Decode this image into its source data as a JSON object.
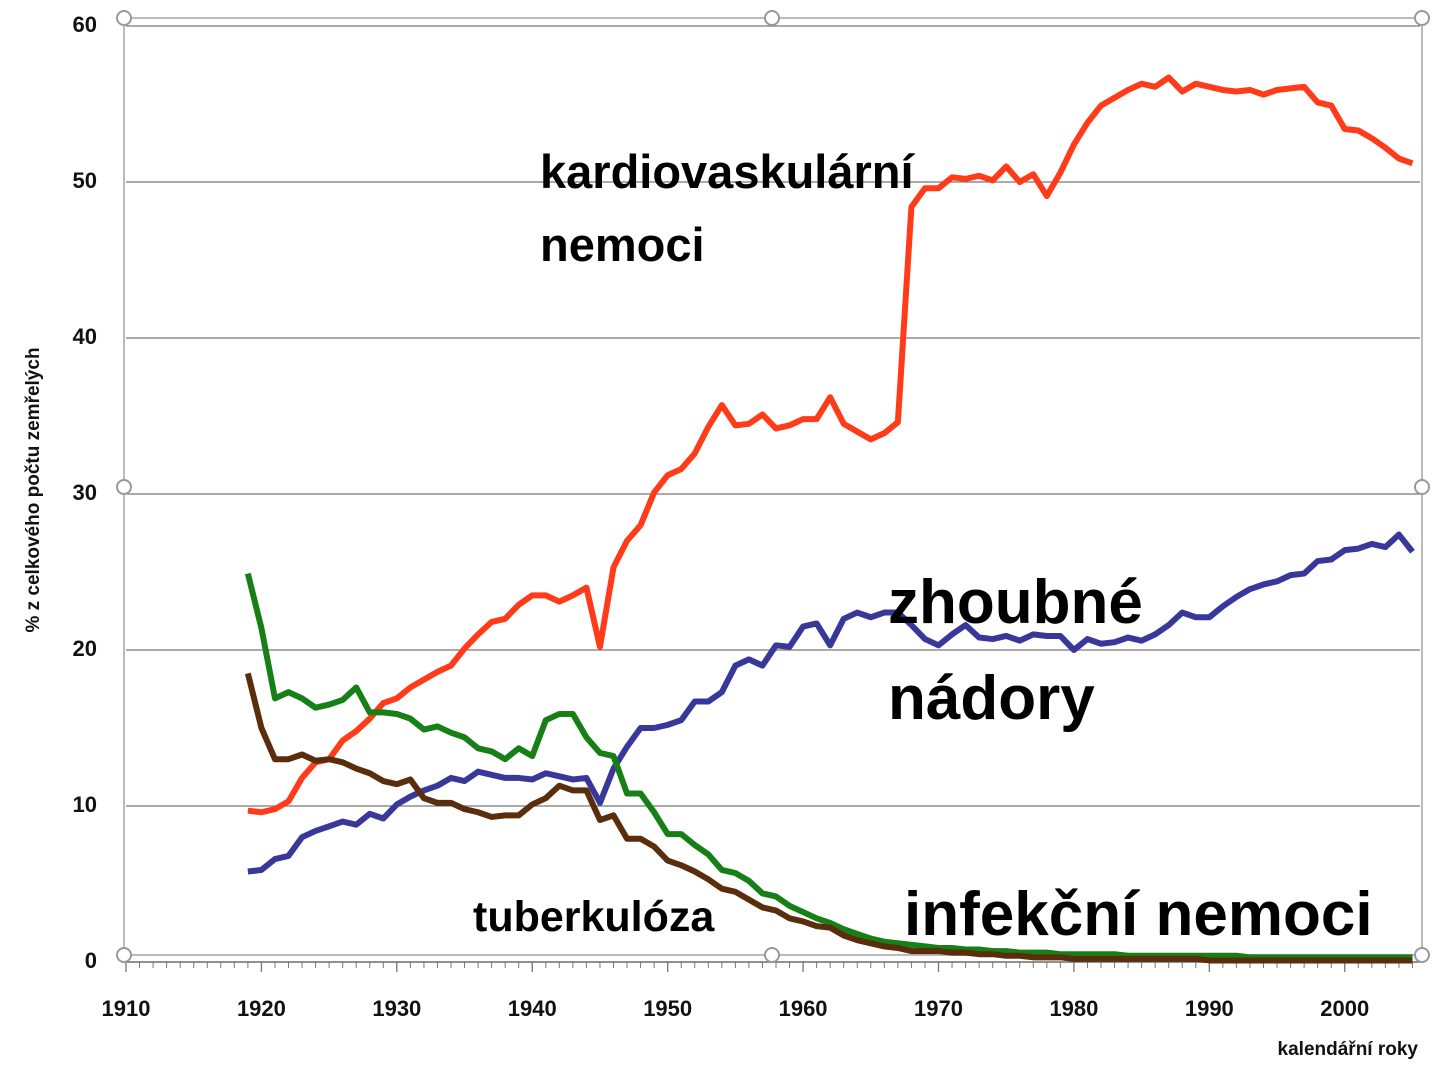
{
  "chart_data": {
    "type": "line",
    "y_label": "% z celkového počtu zemřelých",
    "x_label": "kalendářní roky",
    "x": [
      1919,
      1920,
      1921,
      1922,
      1923,
      1924,
      1925,
      1926,
      1927,
      1928,
      1929,
      1930,
      1931,
      1932,
      1933,
      1934,
      1935,
      1936,
      1937,
      1938,
      1939,
      1940,
      1941,
      1942,
      1943,
      1944,
      1945,
      1946,
      1947,
      1948,
      1949,
      1950,
      1951,
      1952,
      1953,
      1954,
      1955,
      1956,
      1957,
      1958,
      1959,
      1960,
      1961,
      1962,
      1963,
      1964,
      1965,
      1966,
      1967,
      1968,
      1969,
      1970,
      1971,
      1972,
      1973,
      1974,
      1975,
      1976,
      1977,
      1978,
      1979,
      1980,
      1981,
      1982,
      1983,
      1984,
      1985,
      1986,
      1987,
      1988,
      1989,
      1990,
      1991,
      1992,
      1993,
      1994,
      1995,
      1996,
      1997,
      1998,
      1999,
      2000,
      2001,
      2002,
      2003,
      2004,
      2005
    ],
    "series": [
      {
        "name": "kardiovaskulární nemoci",
        "color": "#ff3b1a",
        "values": [
          9.7,
          9.6,
          9.8,
          10.3,
          11.8,
          12.8,
          13,
          14.2,
          14.8,
          15.6,
          16.6,
          16.9,
          17.6,
          18.1,
          18.6,
          19,
          20.1,
          21,
          21.8,
          22,
          22.9,
          23.5,
          23.5,
          23.1,
          23.5,
          24,
          20.2,
          25.3,
          27,
          28,
          30.1,
          31.2,
          31.6,
          32.6,
          34.3,
          35.7,
          34.4,
          34.5,
          35.1,
          34.2,
          34.4,
          34.8,
          34.8,
          36.2,
          34.5,
          34,
          33.5,
          33.9,
          34.6,
          48.4,
          49.6,
          49.6,
          50.3,
          50.2,
          50.4,
          50.1,
          51,
          50,
          50.5,
          49.1,
          50.6,
          52.4,
          53.8,
          54.9,
          55.4,
          55.9,
          56.3,
          56.1,
          56.7,
          55.8,
          56.3,
          56.1,
          55.9,
          55.8,
          55.9,
          55.6,
          55.9,
          56,
          56.1,
          55.1,
          54.9,
          53.4,
          53.3,
          52.8,
          52.2,
          51.5,
          51.2
        ]
      },
      {
        "name": "zhoubné nádory",
        "color": "#38389a",
        "values": [
          5.8,
          5.9,
          6.6,
          6.8,
          8.0,
          8.4,
          8.7,
          9.0,
          8.8,
          9.5,
          9.2,
          10.1,
          10.6,
          11,
          11.3,
          11.8,
          11.6,
          12.2,
          12,
          11.8,
          11.8,
          11.7,
          12.1,
          11.9,
          11.7,
          11.8,
          10.2,
          12.4,
          13.8,
          15,
          15,
          15.2,
          15.5,
          16.7,
          16.7,
          17.3,
          19,
          19.4,
          19,
          20.3,
          20.2,
          21.5,
          21.7,
          20.3,
          22,
          22.4,
          22.1,
          22.4,
          22.4,
          21.6,
          20.7,
          20.3,
          21,
          21.6,
          20.8,
          20.7,
          20.9,
          20.6,
          21,
          20.9,
          20.9,
          20,
          20.7,
          20.4,
          20.5,
          20.8,
          20.6,
          21,
          21.6,
          22.4,
          22.1,
          22.1,
          22.8,
          23.4,
          23.9,
          24.2,
          24.4,
          24.8,
          24.9,
          25.7,
          25.8,
          26.4,
          26.5,
          26.8,
          26.6,
          27.4,
          26.3
        ]
      },
      {
        "name": "infekční nemoci",
        "color": "#168016",
        "values": [
          24.9,
          21.4,
          16.9,
          17.3,
          16.9,
          16.3,
          16.5,
          16.8,
          17.6,
          16,
          16,
          15.9,
          15.6,
          14.9,
          15.1,
          14.7,
          14.4,
          13.7,
          13.5,
          13,
          13.7,
          13.2,
          15.5,
          15.9,
          15.9,
          14.4,
          13.4,
          13.2,
          10.8,
          10.8,
          9.6,
          8.2,
          8.2,
          7.5,
          6.9,
          5.9,
          5.7,
          5.2,
          4.4,
          4.2,
          3.6,
          3.2,
          2.8,
          2.5,
          2.1,
          1.8,
          1.5,
          1.3,
          1.2,
          1.1,
          1.0,
          0.9,
          0.9,
          0.8,
          0.8,
          0.7,
          0.7,
          0.6,
          0.6,
          0.6,
          0.5,
          0.5,
          0.5,
          0.5,
          0.5,
          0.4,
          0.4,
          0.4,
          0.4,
          0.4,
          0.4,
          0.4,
          0.4,
          0.4,
          0.3,
          0.3,
          0.3,
          0.3,
          0.3,
          0.3,
          0.3,
          0.3,
          0.3,
          0.3,
          0.3,
          0.3,
          0.3
        ]
      },
      {
        "name": "tuberkulóza",
        "color": "#5a2d0c",
        "values": [
          18.5,
          15,
          13,
          13,
          13.3,
          12.9,
          13,
          12.8,
          12.4,
          12.1,
          11.6,
          11.4,
          11.7,
          10.5,
          10.2,
          10.2,
          9.8,
          9.6,
          9.3,
          9.4,
          9.4,
          10.1,
          10.5,
          11.3,
          11,
          11,
          9.1,
          9.4,
          7.9,
          7.9,
          7.4,
          6.5,
          6.2,
          5.8,
          5.3,
          4.7,
          4.5,
          4,
          3.5,
          3.3,
          2.8,
          2.6,
          2.3,
          2.2,
          1.7,
          1.4,
          1.2,
          1.0,
          0.9,
          0.7,
          0.7,
          0.7,
          0.6,
          0.6,
          0.5,
          0.5,
          0.4,
          0.4,
          0.3,
          0.3,
          0.3,
          0.2,
          0.2,
          0.2,
          0.2,
          0.2,
          0.2,
          0.2,
          0.2,
          0.2,
          0.2,
          0.1,
          0.1,
          0.1,
          0.1,
          0.1,
          0.1,
          0.1,
          0.1,
          0.1,
          0.1,
          0.1,
          0.1,
          0.1,
          0.1,
          0.1,
          0.1
        ]
      }
    ],
    "xlim": [
      1910,
      2006
    ],
    "xticks": [
      1910,
      1920,
      1930,
      1940,
      1950,
      1960,
      1970,
      1980,
      1990,
      2000
    ],
    "ylim": [
      0,
      60
    ],
    "yticks": [
      0,
      10,
      20,
      30,
      40,
      50,
      60
    ],
    "grid": true
  }
}
